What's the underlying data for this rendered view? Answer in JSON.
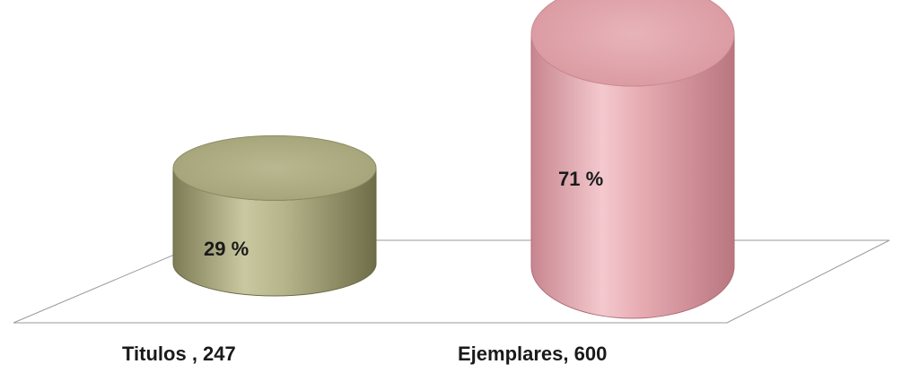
{
  "chart_data": {
    "type": "bar",
    "style": "3d-cylinder",
    "categories": [
      "Titulos , 247",
      "Ejemplares, 600"
    ],
    "values": [
      247,
      600
    ],
    "data_labels": [
      "29 %",
      "71 %"
    ],
    "percentages": [
      29,
      71
    ],
    "colors": [
      "#b5b48a",
      "#e6aab1"
    ],
    "title": "",
    "xlabel": "",
    "ylabel": "",
    "grid": false,
    "legend": "none"
  }
}
